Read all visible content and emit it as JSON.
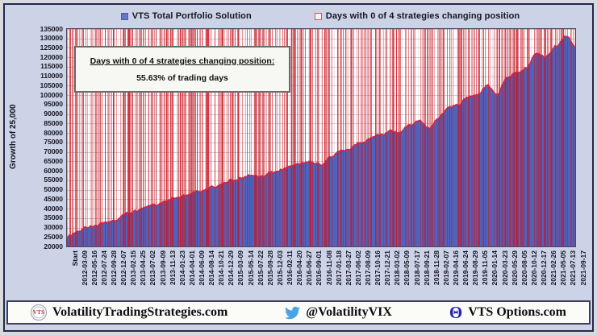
{
  "legend": {
    "items": [
      {
        "label": "VTS Total Portfolio Solution",
        "swatch": "blue-filled-square"
      },
      {
        "label": "Days with 0 of 4 strategies changing position",
        "swatch": "red-outline-square"
      }
    ]
  },
  "annotation": {
    "line1": "Days with 0 of 4 strategies changing position:",
    "line2": "55.63% of trading days"
  },
  "chart_data": {
    "type": "area",
    "title": "",
    "xlabel": "",
    "ylabel": "Growth of 25,000",
    "ylim": [
      20000,
      135000
    ],
    "ytick_step": 5000,
    "grid": true,
    "legend_position": "top",
    "categories": [
      "Start",
      "2012-03-09",
      "2012-05-16",
      "2012-07-24",
      "2012-09-28",
      "2012-12-07",
      "2013-02-15",
      "2013-04-25",
      "2013-07-02",
      "2013-09-09",
      "2013-11-13",
      "2014-01-23",
      "2014-04-01",
      "2014-06-09",
      "2014-08-14",
      "2014-10-21",
      "2014-12-29",
      "2015-03-09",
      "2015-05-14",
      "2015-07-22",
      "2015-09-28",
      "2015-12-03",
      "2016-02-11",
      "2016-04-20",
      "2016-06-27",
      "2016-09-01",
      "2016-11-08",
      "2017-01-18",
      "2017-03-27",
      "2017-06-02",
      "2017-08-09",
      "2017-10-16",
      "2017-12-21",
      "2018-03-02",
      "2018-05-09",
      "2018-07-17",
      "2018-09-21",
      "2018-11-28",
      "2019-02-07",
      "2019-04-16",
      "2019-06-24",
      "2019-08-29",
      "2019-11-05",
      "2020-01-14",
      "2020-03-23",
      "2020-05-29",
      "2020-08-05",
      "2020-10-12",
      "2020-12-17",
      "2021-02-26",
      "2021-05-05",
      "2021-07-13",
      "2021-09-17"
    ],
    "series": [
      {
        "name": "VTS Total Portfolio Solution",
        "type": "area",
        "color": "#4f63bd",
        "edge_color": "#d0243e",
        "values": [
          25000,
          28000,
          29500,
          30500,
          33000,
          34000,
          36500,
          38500,
          40000,
          41500,
          44000,
          45500,
          47000,
          49000,
          50000,
          51500,
          53500,
          55000,
          57000,
          57500,
          56000,
          59000,
          60500,
          62500,
          64000,
          64500,
          63500,
          67500,
          70000,
          72500,
          75500,
          77000,
          79000,
          80500,
          80000,
          83500,
          86000,
          83000,
          89000,
          93500,
          95000,
          99000,
          100500,
          105000,
          99500,
          109000,
          113000,
          116000,
          123000,
          121000,
          126000,
          132000,
          126000
        ]
      },
      {
        "name": "Days with 0 of 4 strategies changing position",
        "type": "event-stripes-full-height",
        "color": "#cb141e",
        "coverage_percent": 55.63
      }
    ]
  },
  "footer": {
    "brand1": {
      "logo_text": "VTS",
      "label": "VolatilityTradingStrategies.com"
    },
    "brand2": {
      "icon": "twitter-bird",
      "label": "@VolatilityVIX"
    },
    "brand3": {
      "icon": "theta-symbol",
      "symbol": "Θ",
      "label": "VTS Options.com"
    }
  },
  "colors": {
    "background": "#ccd3e7",
    "frame_border": "#23284e",
    "plot_background": "#ffffff",
    "series_blue": "#4f63bd",
    "stripe_red": "#cb141e",
    "curve_edge": "#d0243e",
    "twitter_blue": "#4ba3e3",
    "theta_navy": "#2525b2",
    "vts_logo_red": "#b03434"
  }
}
